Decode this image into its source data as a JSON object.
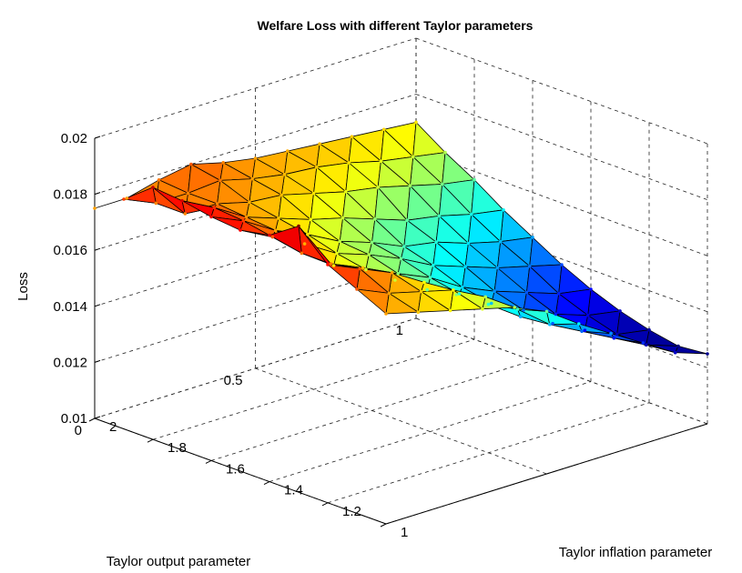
{
  "chart_data": {
    "type": "surface",
    "title": "Welfare Loss with different Taylor parameters",
    "xlabel": "Taylor inflation parameter",
    "ylabel": "Taylor output parameter",
    "zlabel": "Loss",
    "x": [
      1.0,
      1.1,
      1.2,
      1.3,
      1.4,
      1.5,
      1.6,
      1.7,
      1.8,
      1.9,
      2.0
    ],
    "y": [
      0.0,
      0.1,
      0.2,
      0.3,
      0.4,
      0.5,
      0.6,
      0.7,
      0.8,
      0.9,
      1.0
    ],
    "z": [
      [
        0.0175,
        0.018,
        0.0185,
        0.0195,
        0.0188,
        0.0186,
        0.0187,
        0.0189,
        0.019,
        0.0182,
        0.0175
      ],
      [
        0.0172,
        0.0175,
        0.018,
        0.0178,
        0.0178,
        0.018,
        0.0182,
        0.0183,
        0.0177,
        0.0177,
        0.0175
      ],
      [
        0.0169,
        0.0172,
        0.0175,
        0.0173,
        0.017,
        0.0174,
        0.0175,
        0.0176,
        0.0177,
        0.0177,
        0.0178
      ],
      [
        0.0166,
        0.0169,
        0.0168,
        0.0165,
        0.0165,
        0.0167,
        0.017,
        0.0172,
        0.0174,
        0.0178,
        0.018
      ],
      [
        0.0163,
        0.0163,
        0.016,
        0.0158,
        0.016,
        0.0163,
        0.0164,
        0.0168,
        0.0173,
        0.0175,
        0.0177
      ],
      [
        0.0158,
        0.0155,
        0.0153,
        0.0153,
        0.0155,
        0.0158,
        0.016,
        0.0165,
        0.017,
        0.0173,
        0.0175
      ],
      [
        0.015,
        0.0146,
        0.0145,
        0.0146,
        0.0148,
        0.0152,
        0.0155,
        0.0161,
        0.0167,
        0.0172,
        0.0174
      ],
      [
        0.0143,
        0.014,
        0.0139,
        0.014,
        0.0143,
        0.0148,
        0.0153,
        0.0157,
        0.0165,
        0.017,
        0.0173
      ],
      [
        0.0136,
        0.0134,
        0.0133,
        0.0135,
        0.0139,
        0.0144,
        0.0149,
        0.0155,
        0.0162,
        0.0167,
        0.0172
      ],
      [
        0.0129,
        0.0128,
        0.0128,
        0.0131,
        0.0135,
        0.0141,
        0.0146,
        0.0152,
        0.0159,
        0.0165,
        0.0171
      ],
      [
        0.0125,
        0.0124,
        0.0126,
        0.0129,
        0.0133,
        0.0138,
        0.0144,
        0.015,
        0.0157,
        0.0163,
        0.017
      ]
    ],
    "xlim": [
      1,
      2
    ],
    "ylim": [
      0,
      1
    ],
    "zlim": [
      0.01,
      0.02
    ],
    "xticks": [
      "1",
      "1.2",
      "1.4",
      "1.6",
      "1.8",
      "2"
    ],
    "yticks": [
      "0",
      "0.5",
      "1"
    ],
    "zticks": [
      "0.01",
      "0.012",
      "0.014",
      "0.016",
      "0.018",
      "0.02"
    ],
    "grid": true,
    "colormap": "jet"
  }
}
